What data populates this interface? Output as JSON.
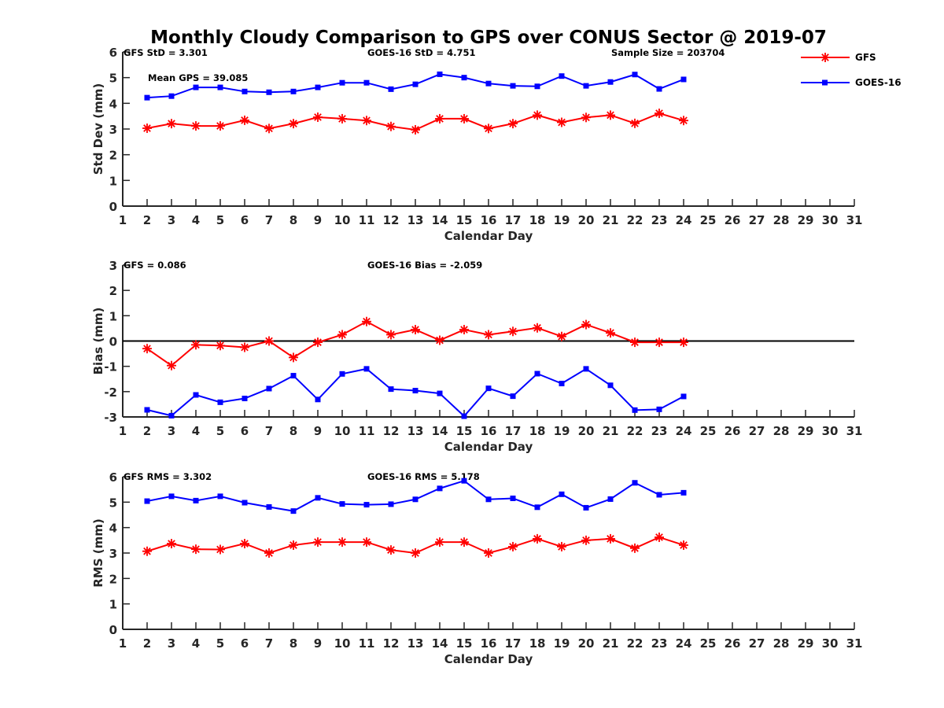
{
  "chart_data": {
    "title": "Monthly Cloudy Comparison to GPS over CONUS Sector @ 2019-07",
    "legend": {
      "placement": "top-right-outside",
      "entries": [
        {
          "name": "GFS",
          "color": "#ff0000",
          "marker": "asterisk"
        },
        {
          "name": "GOES-16",
          "color": "#0000ff",
          "marker": "square"
        }
      ]
    },
    "panels": [
      {
        "type": "line",
        "ylabel": "Std Dev (mm)",
        "xlabel": "Calendar Day",
        "xlim": [
          1,
          31
        ],
        "ylim": [
          0,
          6
        ],
        "xticks": [
          "1",
          "2",
          "3",
          "4",
          "5",
          "6",
          "7",
          "8",
          "9",
          "10",
          "11",
          "12",
          "13",
          "14",
          "15",
          "16",
          "17",
          "18",
          "19",
          "20",
          "21",
          "22",
          "23",
          "24",
          "25",
          "26",
          "27",
          "28",
          "29",
          "30",
          "31"
        ],
        "yticks": [
          "0",
          "1",
          "2",
          "3",
          "4",
          "5",
          "6"
        ],
        "annotations": [
          "GFS StD = 3.301",
          "GOES-16 StD = 4.751",
          "Sample Size = 203704",
          "Mean GPS = 39.085"
        ],
        "zero_line": false,
        "x": [
          2,
          3,
          4,
          5,
          6,
          7,
          8,
          9,
          10,
          11,
          12,
          13,
          14,
          15,
          16,
          17,
          18,
          19,
          20,
          21,
          22,
          23,
          24
        ],
        "series": [
          {
            "name": "GFS",
            "values": [
              3.03,
              3.21,
              3.12,
              3.12,
              3.34,
              3.02,
              3.21,
              3.46,
              3.4,
              3.33,
              3.1,
              2.97,
              3.4,
              3.4,
              3.02,
              3.21,
              3.54,
              3.26,
              3.45,
              3.54,
              3.22,
              3.61,
              3.33
            ]
          },
          {
            "name": "GOES-16",
            "values": [
              4.22,
              4.28,
              4.62,
              4.62,
              4.46,
              4.43,
              4.46,
              4.62,
              4.8,
              4.8,
              4.55,
              4.74,
              5.13,
              5.0,
              4.77,
              4.68,
              4.66,
              5.06,
              4.68,
              4.83,
              5.12,
              4.56,
              4.93
            ]
          }
        ]
      },
      {
        "type": "line",
        "ylabel": "Bias (mm)",
        "xlabel": "Calendar Day",
        "xlim": [
          1,
          31
        ],
        "ylim": [
          -3,
          3
        ],
        "xticks": [
          "1",
          "2",
          "3",
          "4",
          "5",
          "6",
          "7",
          "8",
          "9",
          "10",
          "11",
          "12",
          "13",
          "14",
          "15",
          "16",
          "17",
          "18",
          "19",
          "20",
          "21",
          "22",
          "23",
          "24",
          "25",
          "26",
          "27",
          "28",
          "29",
          "30",
          "31"
        ],
        "yticks": [
          "-3",
          "-2",
          "-1",
          "0",
          "1",
          "2",
          "3"
        ],
        "annotations": [
          "GFS = 0.086",
          "GOES-16 Bias = -2.059"
        ],
        "zero_line": true,
        "x": [
          2,
          3,
          4,
          5,
          6,
          7,
          8,
          9,
          10,
          11,
          12,
          13,
          14,
          15,
          16,
          17,
          18,
          19,
          20,
          21,
          22,
          23,
          24
        ],
        "series": [
          {
            "name": "GFS",
            "values": [
              -0.3,
              -0.97,
              -0.15,
              -0.18,
              -0.25,
              0.0,
              -0.65,
              -0.05,
              0.25,
              0.77,
              0.25,
              0.45,
              0.03,
              0.45,
              0.25,
              0.38,
              0.52,
              0.18,
              0.65,
              0.32,
              -0.05,
              -0.05,
              -0.05
            ]
          },
          {
            "name": "GOES-16",
            "values": [
              -2.72,
              -2.95,
              -2.13,
              -2.42,
              -2.27,
              -1.88,
              -1.37,
              -2.31,
              -1.3,
              -1.1,
              -1.9,
              -1.96,
              -2.07,
              -2.97,
              -1.87,
              -2.18,
              -1.29,
              -1.68,
              -1.1,
              -1.75,
              -2.73,
              -2.7,
              -2.19
            ]
          }
        ]
      },
      {
        "type": "line",
        "ylabel": "RMS (mm)",
        "xlabel": "Calendar Day",
        "xlim": [
          1,
          31
        ],
        "ylim": [
          0,
          6
        ],
        "xticks": [
          "1",
          "2",
          "3",
          "4",
          "5",
          "6",
          "7",
          "8",
          "9",
          "10",
          "11",
          "12",
          "13",
          "14",
          "15",
          "16",
          "17",
          "18",
          "19",
          "20",
          "21",
          "22",
          "23",
          "24",
          "25",
          "26",
          "27",
          "28",
          "29",
          "30",
          "31"
        ],
        "yticks": [
          "0",
          "1",
          "2",
          "3",
          "4",
          "5",
          "6"
        ],
        "annotations": [
          "GFS RMS = 3.302",
          "GOES-16 RMS = 5.178"
        ],
        "zero_line": false,
        "x": [
          2,
          3,
          4,
          5,
          6,
          7,
          8,
          9,
          10,
          11,
          12,
          13,
          14,
          15,
          16,
          17,
          18,
          19,
          20,
          21,
          22,
          23,
          24
        ],
        "series": [
          {
            "name": "GFS",
            "values": [
              3.07,
              3.37,
              3.15,
              3.14,
              3.37,
              3.0,
              3.31,
              3.43,
              3.43,
              3.43,
              3.12,
              3.0,
              3.43,
              3.43,
              3.0,
              3.25,
              3.56,
              3.25,
              3.5,
              3.56,
              3.19,
              3.62,
              3.31
            ]
          },
          {
            "name": "GOES-16",
            "values": [
              5.04,
              5.23,
              5.06,
              5.23,
              4.98,
              4.81,
              4.65,
              5.17,
              4.93,
              4.9,
              4.92,
              5.11,
              5.54,
              5.84,
              5.11,
              5.15,
              4.8,
              5.31,
              4.78,
              5.12,
              5.76,
              5.29,
              5.37
            ]
          }
        ]
      }
    ]
  }
}
